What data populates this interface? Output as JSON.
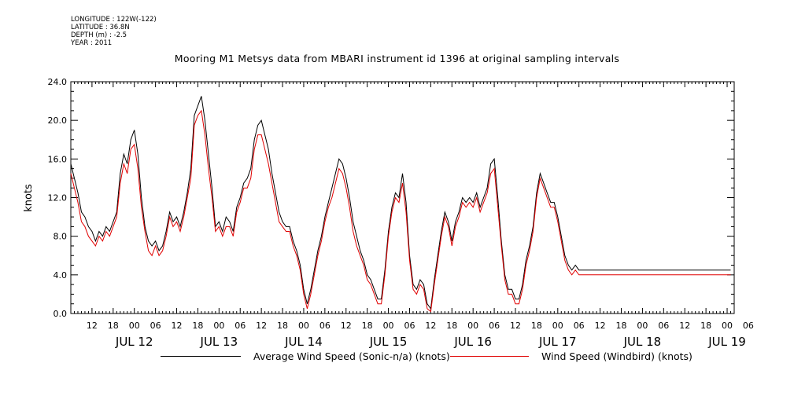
{
  "meta": {
    "longitude": "LONGITUDE : 122W(-122)",
    "latitude": "LATITUDE : 36.8N",
    "depth": "DEPTH (m) : -2.5",
    "year": "YEAR : 2011"
  },
  "colors": {
    "series_average": "#000000",
    "series_windbird": "#e00000"
  },
  "chart_data": {
    "type": "line",
    "title": "Mooring M1 Metsys data from MBARI instrument id 1396 at original sampling intervals",
    "ylabel": "knots",
    "xlabel": "",
    "ylim": [
      0,
      24
    ],
    "yticks": [
      "0.0",
      "4.0",
      "8.0",
      "12.0",
      "16.0",
      "20.0",
      "24.0"
    ],
    "xlim_hours": [
      0,
      188
    ],
    "hour_ticks": [
      "12",
      "18",
      "00",
      "06",
      "12",
      "18",
      "00",
      "06",
      "12",
      "18",
      "00",
      "06",
      "12",
      "18",
      "00",
      "06",
      "12",
      "18",
      "00",
      "06",
      "12",
      "18",
      "00",
      "06",
      "12",
      "18",
      "00",
      "06",
      "12",
      "18",
      "00",
      "06"
    ],
    "day_labels": [
      "JUL 12",
      "JUL 13",
      "JUL 14",
      "JUL 15",
      "JUL 16",
      "JUL 17",
      "JUL 18",
      "JUL 19"
    ],
    "grid": false,
    "legend_position": "bottom",
    "series": [
      {
        "name": "Average Wind Speed (Sonic-n/a) (knots)",
        "color": "#000000",
        "x": [
          0,
          1,
          2,
          3,
          4,
          5,
          6,
          7,
          8,
          9,
          10,
          11,
          12,
          13,
          14,
          15,
          16,
          17,
          18,
          19,
          20,
          21,
          22,
          23,
          24,
          25,
          26,
          27,
          28,
          29,
          30,
          31,
          32,
          33,
          34,
          35,
          36,
          37,
          38,
          39,
          40,
          41,
          42,
          43,
          44,
          45,
          46,
          47,
          48,
          49,
          50,
          51,
          52,
          53,
          54,
          55,
          56,
          57,
          58,
          59,
          60,
          61,
          62,
          63,
          64,
          65,
          66,
          67,
          68,
          69,
          70,
          71,
          72,
          73,
          74,
          75,
          76,
          77,
          78,
          79,
          80,
          81,
          82,
          83,
          84,
          85,
          86,
          87,
          88,
          89,
          90,
          91,
          92,
          93,
          94,
          95,
          96,
          97,
          98,
          99,
          100,
          101,
          102,
          103,
          104,
          105,
          106,
          107,
          108,
          109,
          110,
          111,
          112,
          113,
          114,
          115,
          116,
          117,
          118,
          119,
          120,
          121,
          122,
          123,
          124,
          125,
          126,
          127,
          128,
          129,
          130,
          131,
          132,
          133,
          134,
          135,
          136,
          137,
          138,
          139,
          140,
          141,
          142,
          143,
          144,
          145,
          146,
          147,
          148,
          149,
          150,
          151,
          152,
          153,
          154,
          155,
          156,
          157,
          158,
          159,
          160,
          161,
          162,
          163,
          164,
          165,
          166,
          167,
          168,
          169,
          170,
          171,
          172,
          173,
          174,
          175,
          176,
          177,
          178,
          179,
          180,
          181,
          182,
          183,
          184,
          185,
          186,
          187
        ],
        "y": [
          15.5,
          14.0,
          12.5,
          10.5,
          10.0,
          9.0,
          8.5,
          7.5,
          8.5,
          8.0,
          9.0,
          8.5,
          9.5,
          10.5,
          14.5,
          16.5,
          15.5,
          18.0,
          19.0,
          16.5,
          12.0,
          9.0,
          7.5,
          7.0,
          7.5,
          6.5,
          7.0,
          8.5,
          10.5,
          9.5,
          10.0,
          9.0,
          10.5,
          12.5,
          15.0,
          20.5,
          21.5,
          22.5,
          20.0,
          16.5,
          13.0,
          9.0,
          9.5,
          8.5,
          10.0,
          9.5,
          8.5,
          11.0,
          12.0,
          13.5,
          14.0,
          15.0,
          18.0,
          19.5,
          20.0,
          18.5,
          17.0,
          14.5,
          12.5,
          10.5,
          9.5,
          9.0,
          9.0,
          7.5,
          6.5,
          5.0,
          2.5,
          1.0,
          2.5,
          4.5,
          6.5,
          8.0,
          10.0,
          11.5,
          13.0,
          14.5,
          16.0,
          15.5,
          14.0,
          12.0,
          9.5,
          8.0,
          6.5,
          5.5,
          4.0,
          3.5,
          2.5,
          1.5,
          1.5,
          4.5,
          8.5,
          11.0,
          12.5,
          12.0,
          14.5,
          11.5,
          6.0,
          3.0,
          2.5,
          3.5,
          3.0,
          1.0,
          0.5,
          3.5,
          6.0,
          8.5,
          10.5,
          9.5,
          7.5,
          9.5,
          10.5,
          12.0,
          11.5,
          12.0,
          11.5,
          12.5,
          11.0,
          12.0,
          13.0,
          15.5,
          16.0,
          12.0,
          7.5,
          4.0,
          2.5,
          2.5,
          1.5,
          1.5,
          3.0,
          5.5,
          7.0,
          9.0,
          12.5,
          14.5,
          13.5,
          12.5,
          11.5,
          11.5,
          10.0,
          8.0,
          6.0,
          5.0,
          4.5,
          5.0,
          4.5,
          4.5,
          4.5,
          4.5,
          4.5,
          4.5,
          4.5,
          4.5,
          4.5,
          4.5,
          4.5,
          4.5,
          4.5,
          4.5,
          4.5,
          4.5,
          4.5,
          4.5,
          4.5,
          4.5,
          4.5,
          4.5,
          4.5,
          4.5,
          4.5,
          4.5,
          4.5,
          4.5,
          4.5,
          4.5,
          4.5,
          4.5,
          4.5,
          4.5,
          4.5,
          4.5,
          4.5,
          4.5,
          4.5,
          4.5,
          4.5,
          4.5,
          4.5,
          4.5
        ]
      },
      {
        "name": "Wind Speed (Windbird) (knots)",
        "color": "#e00000",
        "x": [
          0,
          1,
          2,
          3,
          4,
          5,
          6,
          7,
          8,
          9,
          10,
          11,
          12,
          13,
          14,
          15,
          16,
          17,
          18,
          19,
          20,
          21,
          22,
          23,
          24,
          25,
          26,
          27,
          28,
          29,
          30,
          31,
          32,
          33,
          34,
          35,
          36,
          37,
          38,
          39,
          40,
          41,
          42,
          43,
          44,
          45,
          46,
          47,
          48,
          49,
          50,
          51,
          52,
          53,
          54,
          55,
          56,
          57,
          58,
          59,
          60,
          61,
          62,
          63,
          64,
          65,
          66,
          67,
          68,
          69,
          70,
          71,
          72,
          73,
          74,
          75,
          76,
          77,
          78,
          79,
          80,
          81,
          82,
          83,
          84,
          85,
          86,
          87,
          88,
          89,
          90,
          91,
          92,
          93,
          94,
          95,
          96,
          97,
          98,
          99,
          100,
          101,
          102,
          103,
          104,
          105,
          106,
          107,
          108,
          109,
          110,
          111,
          112,
          113,
          114,
          115,
          116,
          117,
          118,
          119,
          120,
          121,
          122,
          123,
          124,
          125,
          126,
          127,
          128,
          129,
          130,
          131,
          132,
          133,
          134,
          135,
          136,
          137,
          138,
          139,
          140,
          141,
          142,
          143,
          144,
          145,
          146,
          147,
          148,
          149,
          150,
          151,
          152,
          153,
          154,
          155,
          156,
          157,
          158,
          159,
          160,
          161,
          162,
          163,
          164,
          165,
          166,
          167,
          168,
          169,
          170,
          171,
          172,
          173,
          174,
          175,
          176,
          177,
          178,
          179,
          180,
          181,
          182,
          183,
          184,
          185,
          186,
          187
        ],
        "y": [
          14.5,
          13.0,
          11.5,
          9.5,
          9.0,
          8.0,
          7.5,
          7.0,
          8.0,
          7.5,
          8.5,
          8.0,
          9.0,
          10.0,
          13.5,
          15.5,
          14.5,
          17.0,
          17.5,
          15.0,
          11.0,
          8.5,
          6.5,
          6.0,
          7.0,
          6.0,
          6.5,
          8.0,
          10.0,
          9.0,
          9.5,
          8.5,
          10.0,
          12.0,
          14.0,
          19.5,
          20.5,
          21.0,
          18.5,
          15.0,
          12.0,
          8.5,
          9.0,
          8.0,
          9.0,
          9.0,
          8.0,
          10.5,
          11.5,
          13.0,
          13.0,
          14.0,
          17.0,
          18.5,
          18.5,
          17.0,
          15.5,
          13.5,
          11.5,
          9.5,
          9.0,
          8.5,
          8.5,
          7.0,
          6.0,
          4.5,
          2.0,
          0.5,
          2.0,
          4.0,
          6.0,
          7.5,
          9.5,
          11.0,
          12.0,
          13.5,
          15.0,
          14.5,
          13.0,
          11.0,
          8.5,
          7.0,
          6.0,
          5.0,
          3.5,
          3.0,
          2.0,
          1.0,
          1.0,
          4.0,
          8.0,
          10.5,
          12.0,
          11.5,
          13.5,
          10.5,
          5.5,
          2.5,
          2.0,
          3.0,
          2.5,
          0.5,
          0.2,
          3.0,
          5.5,
          8.0,
          10.0,
          9.0,
          7.0,
          9.0,
          10.0,
          11.5,
          11.0,
          11.5,
          11.0,
          12.0,
          10.5,
          11.5,
          12.5,
          14.5,
          15.0,
          11.0,
          7.0,
          3.5,
          2.0,
          2.0,
          1.0,
          1.0,
          2.5,
          5.0,
          6.5,
          8.5,
          12.0,
          14.0,
          13.0,
          12.0,
          11.0,
          11.0,
          9.5,
          7.5,
          5.5,
          4.5,
          4.0,
          4.5,
          4.0,
          4.0,
          4.0,
          4.0,
          4.0,
          4.0,
          4.0,
          4.0,
          4.0,
          4.0,
          4.0,
          4.0,
          4.0,
          4.0,
          4.0,
          4.0,
          4.0,
          4.0,
          4.0,
          4.0,
          4.0,
          4.0,
          4.0,
          4.0,
          4.0,
          4.0,
          4.0,
          4.0,
          4.0,
          4.0,
          4.0,
          4.0,
          4.0,
          4.0,
          4.0,
          4.0,
          4.0,
          4.0,
          4.0,
          4.0,
          4.0,
          4.0,
          4.0,
          4.0
        ]
      }
    ]
  }
}
